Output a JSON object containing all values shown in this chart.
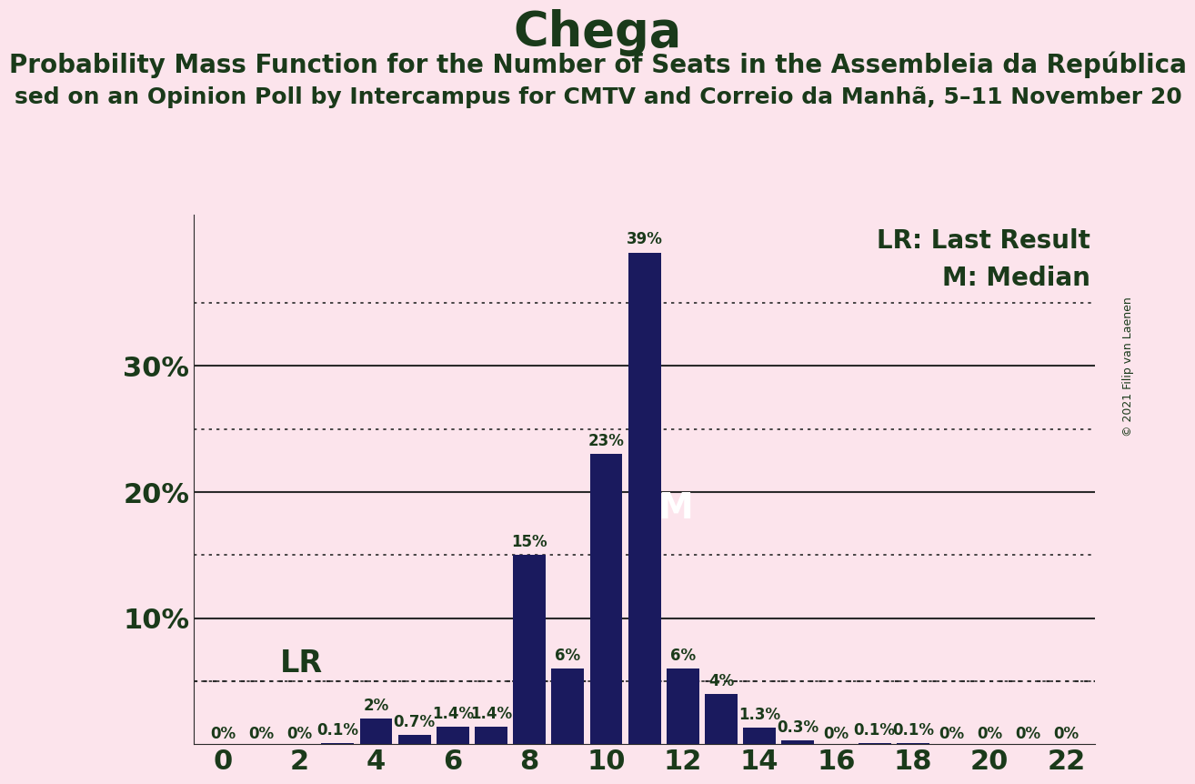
{
  "title": "Chega",
  "subtitle1": "Probability Mass Function for the Number of Seats in the Assembleia da República",
  "subtitle2": "sed on an Opinion Poll by Intercampus for CMTV and Correio da Manhã, 5–11 November 20",
  "copyright": "© 2021 Filip van Laenen",
  "background_color": "#fce4ec",
  "bar_color": "#1a1a5e",
  "bar_color_lr": "#c8a0b4",
  "seats": [
    0,
    1,
    2,
    3,
    4,
    5,
    6,
    7,
    8,
    9,
    10,
    11,
    12,
    13,
    14,
    15,
    16,
    17,
    18,
    19,
    20,
    21,
    22
  ],
  "values": [
    0.0,
    0.0,
    0.0,
    0.1,
    2.0,
    0.7,
    1.4,
    1.4,
    15.0,
    6.0,
    23.0,
    39.0,
    6.0,
    4.0,
    1.3,
    0.3,
    0.0,
    0.1,
    0.1,
    0.0,
    0.0,
    0.0,
    0.0
  ],
  "labels": [
    "0%",
    "0%",
    "0%",
    "0.1%",
    "2%",
    "0.7%",
    "1.4%",
    "1.4%",
    "15%",
    "6%",
    "23%",
    "39%",
    "6%",
    "4%",
    "1.3%",
    "0.3%",
    "0%",
    "0.1%",
    "0.1%",
    "0%",
    "0%",
    "0%",
    "0%"
  ],
  "show_label_zeros": [
    true,
    true,
    true,
    true,
    true,
    true,
    true,
    true,
    true,
    true,
    true,
    true,
    true,
    true,
    true,
    true,
    true,
    true,
    true,
    true,
    true,
    true,
    true
  ],
  "lr_seat": 1,
  "median_seat": 11,
  "lr_line_y": 5.0,
  "solid_grid": [
    10,
    20,
    30
  ],
  "dotted_grid": [
    5,
    15,
    25,
    35
  ],
  "ylim": [
    0,
    42
  ],
  "xlim_min": -0.75,
  "xlim_max": 22.75,
  "xlabel_ticks": [
    0,
    2,
    4,
    6,
    8,
    10,
    12,
    14,
    16,
    18,
    20,
    22
  ],
  "ytick_positions": [
    10,
    20,
    30
  ],
  "ytick_labels": [
    "10%",
    "20%",
    "30%"
  ],
  "grid_color": "#2a2a2a",
  "text_color": "#1a3a1a",
  "title_fontsize": 38,
  "subtitle1_fontsize": 20,
  "subtitle2_fontsize": 18,
  "label_fontsize": 12,
  "axis_fontsize": 22,
  "legend_fontsize": 20,
  "lr_fontsize": 24,
  "median_fontsize": 28,
  "copyright_fontsize": 9
}
